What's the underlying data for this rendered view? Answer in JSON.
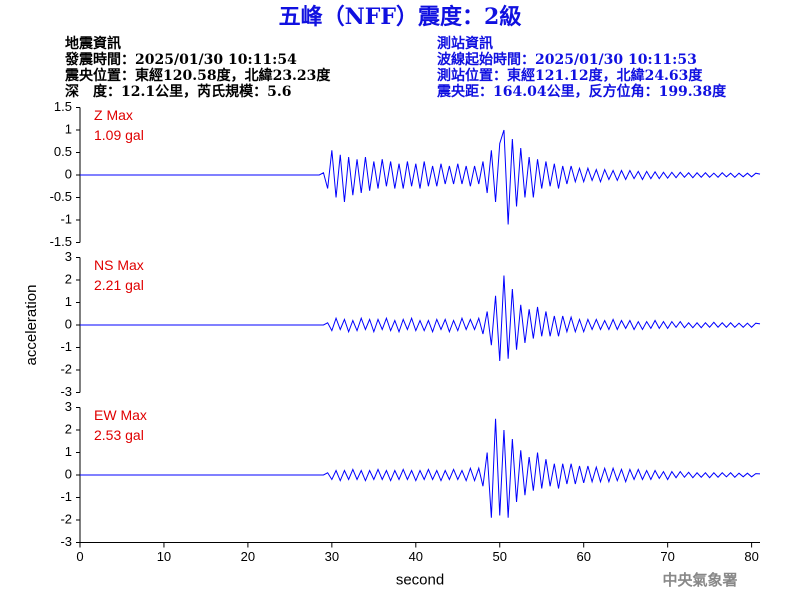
{
  "header": {
    "title": "五峰（NFF）震度：2級",
    "left": [
      "地震資訊",
      "發震時間：2025/01/30 10:11:54",
      "震央位置：東經120.58度，北緯23.23度",
      "深　度：12.1公里，芮氏規模：5.6"
    ],
    "right": [
      "測站資訊",
      "波線起始時間：2025/01/30 10:11:53",
      "測站位置：東經121.12度，北緯24.63度",
      "震央距：164.04公里，反方位角：199.38度"
    ]
  },
  "footer": "中央氣象署",
  "chart_data": [
    {
      "type": "line",
      "annotations": [
        "Z Max",
        "1.09 gal"
      ],
      "color": "#0000ff",
      "annotation_color": "#e00000",
      "xlim": [
        0,
        81
      ],
      "ylim": [
        -1.5,
        1.5
      ],
      "yticks": [
        -1.5,
        -1,
        -0.5,
        0,
        0.5,
        1,
        1.5
      ],
      "x": [
        0,
        28.5,
        29,
        29.5,
        30,
        30.5,
        31,
        31.5,
        32,
        32.5,
        33,
        33.5,
        34,
        34.5,
        35,
        35.5,
        36,
        36.5,
        37,
        37.5,
        38,
        38.5,
        39,
        39.5,
        40,
        40.5,
        41,
        41.5,
        42,
        42.5,
        43,
        43.5,
        44,
        44.5,
        45,
        45.5,
        46,
        46.5,
        47,
        47.5,
        48,
        48.5,
        49,
        49.5,
        50,
        50.5,
        51,
        51.5,
        52,
        52.5,
        53,
        53.5,
        54,
        54.5,
        55,
        55.5,
        56,
        56.5,
        57,
        57.5,
        58,
        58.5,
        59,
        59.5,
        60,
        60.5,
        61,
        61.5,
        62,
        62.5,
        63,
        63.5,
        64,
        64.5,
        65,
        65.5,
        66,
        66.5,
        67,
        67.5,
        68,
        68.5,
        69,
        69.5,
        70,
        70.5,
        71,
        71.5,
        72,
        72.5,
        73,
        73.5,
        74,
        74.5,
        75,
        75.5,
        76,
        76.5,
        77,
        77.5,
        78,
        78.5,
        79,
        79.5,
        80,
        80.5,
        81
      ],
      "values": [
        0,
        0,
        0.05,
        -0.3,
        0.55,
        -0.5,
        0.45,
        -0.6,
        0.4,
        -0.45,
        0.35,
        -0.4,
        0.4,
        -0.35,
        0.3,
        -0.3,
        0.35,
        -0.25,
        0.3,
        -0.3,
        0.25,
        -0.3,
        0.3,
        -0.25,
        0.25,
        -0.3,
        0.3,
        -0.25,
        0.2,
        -0.25,
        0.25,
        -0.2,
        0.2,
        -0.2,
        0.25,
        -0.2,
        0.2,
        -0.25,
        0.2,
        -0.2,
        0.3,
        -0.4,
        0.55,
        -0.6,
        0.7,
        1.0,
        -1.1,
        0.8,
        -0.7,
        0.6,
        -0.5,
        0.4,
        -0.5,
        0.35,
        -0.3,
        0.3,
        -0.25,
        0.25,
        -0.3,
        0.2,
        -0.2,
        0.2,
        -0.15,
        0.15,
        -0.15,
        0.15,
        -0.12,
        0.12,
        -0.15,
        0.12,
        -0.1,
        0.1,
        -0.12,
        0.1,
        -0.1,
        0.1,
        -0.08,
        0.08,
        -0.1,
        0.08,
        -0.08,
        0.07,
        -0.08,
        0.06,
        -0.07,
        0.06,
        -0.06,
        0.06,
        -0.05,
        0.05,
        -0.06,
        0.05,
        -0.05,
        0.05,
        -0.05,
        0.04,
        -0.05,
        0.05,
        -0.04,
        0.04,
        -0.05,
        0.04,
        -0.04,
        0.04,
        -0.04,
        0.04,
        0.02
      ]
    },
    {
      "type": "line",
      "annotations": [
        "NS Max",
        "2.21 gal"
      ],
      "color": "#0000ff",
      "annotation_color": "#e00000",
      "ylabel": "acceleration",
      "xlim": [
        0,
        81
      ],
      "ylim": [
        -3,
        3
      ],
      "yticks": [
        -3,
        -2,
        -1,
        0,
        1,
        2,
        3
      ],
      "x": [
        0,
        28.5,
        29,
        29.5,
        30,
        30.5,
        31,
        31.5,
        32,
        32.5,
        33,
        33.5,
        34,
        34.5,
        35,
        35.5,
        36,
        36.5,
        37,
        37.5,
        38,
        38.5,
        39,
        39.5,
        40,
        40.5,
        41,
        41.5,
        42,
        42.5,
        43,
        43.5,
        44,
        44.5,
        45,
        45.5,
        46,
        46.5,
        47,
        47.5,
        48,
        48.5,
        49,
        49.5,
        50,
        50.5,
        51,
        51.5,
        52,
        52.5,
        53,
        53.5,
        54,
        54.5,
        55,
        55.5,
        56,
        56.5,
        57,
        57.5,
        58,
        58.5,
        59,
        59.5,
        60,
        60.5,
        61,
        61.5,
        62,
        62.5,
        63,
        63.5,
        64,
        64.5,
        65,
        65.5,
        66,
        66.5,
        67,
        67.5,
        68,
        68.5,
        69,
        69.5,
        70,
        70.5,
        71,
        71.5,
        72,
        72.5,
        73,
        73.5,
        74,
        74.5,
        75,
        75.5,
        76,
        76.5,
        77,
        77.5,
        78,
        78.5,
        79,
        79.5,
        80,
        80.5,
        81
      ],
      "values": [
        0,
        0,
        0,
        0.1,
        -0.25,
        0.3,
        -0.2,
        0.25,
        -0.3,
        0.2,
        -0.25,
        0.3,
        -0.2,
        0.25,
        -0.3,
        0.25,
        -0.2,
        0.3,
        -0.25,
        0.2,
        -0.3,
        0.25,
        -0.2,
        0.3,
        -0.25,
        0.2,
        -0.25,
        0.2,
        -0.3,
        0.25,
        -0.2,
        0.25,
        -0.3,
        0.2,
        -0.25,
        0.3,
        -0.2,
        0.25,
        -0.2,
        0.3,
        -0.4,
        0.6,
        -0.9,
        1.3,
        -1.6,
        2.2,
        -1.5,
        1.6,
        -1.1,
        0.9,
        -0.8,
        0.7,
        -0.6,
        0.8,
        -0.5,
        0.6,
        -0.5,
        0.4,
        -0.5,
        0.4,
        -0.3,
        0.35,
        -0.3,
        0.25,
        -0.3,
        0.25,
        -0.2,
        0.25,
        -0.2,
        0.2,
        -0.2,
        0.25,
        -0.2,
        0.2,
        -0.15,
        0.2,
        -0.2,
        0.15,
        -0.2,
        0.15,
        -0.15,
        0.2,
        -0.15,
        0.15,
        -0.15,
        0.15,
        -0.1,
        0.15,
        -0.12,
        0.1,
        -0.12,
        0.1,
        -0.12,
        0.1,
        -0.1,
        0.12,
        -0.1,
        0.1,
        -0.1,
        0.1,
        -0.1,
        0.08,
        -0.1,
        0.08,
        -0.1,
        0.08,
        0.05
      ]
    },
    {
      "type": "line",
      "annotations": [
        "EW Max",
        "2.53 gal"
      ],
      "color": "#0000ff",
      "annotation_color": "#e00000",
      "xlabel": "second",
      "xlim": [
        0,
        81
      ],
      "xticks": [
        0,
        10,
        20,
        30,
        40,
        50,
        60,
        70,
        80
      ],
      "ylim": [
        -3,
        3
      ],
      "yticks": [
        -3,
        -2,
        -1,
        0,
        1,
        2,
        3
      ],
      "x": [
        0,
        28.5,
        29,
        29.5,
        30,
        30.5,
        31,
        31.5,
        32,
        32.5,
        33,
        33.5,
        34,
        34.5,
        35,
        35.5,
        36,
        36.5,
        37,
        37.5,
        38,
        38.5,
        39,
        39.5,
        40,
        40.5,
        41,
        41.5,
        42,
        42.5,
        43,
        43.5,
        44,
        44.5,
        45,
        45.5,
        46,
        46.5,
        47,
        47.5,
        48,
        48.5,
        49,
        49.5,
        50,
        50.5,
        51,
        51.5,
        52,
        52.5,
        53,
        53.5,
        54,
        54.5,
        55,
        55.5,
        56,
        56.5,
        57,
        57.5,
        58,
        58.5,
        59,
        59.5,
        60,
        60.5,
        61,
        61.5,
        62,
        62.5,
        63,
        63.5,
        64,
        64.5,
        65,
        65.5,
        66,
        66.5,
        67,
        67.5,
        68,
        68.5,
        69,
        69.5,
        70,
        70.5,
        71,
        71.5,
        72,
        72.5,
        73,
        73.5,
        74,
        74.5,
        75,
        75.5,
        76,
        76.5,
        77,
        77.5,
        78,
        78.5,
        79,
        79.5,
        80,
        80.5,
        81
      ],
      "values": [
        0,
        0,
        0,
        0.1,
        -0.2,
        0.2,
        -0.25,
        0.2,
        -0.2,
        0.25,
        -0.2,
        0.2,
        -0.25,
        0.2,
        -0.2,
        0.25,
        -0.2,
        0.2,
        -0.25,
        0.2,
        -0.2,
        0.25,
        -0.2,
        0.2,
        -0.25,
        0.2,
        -0.2,
        0.25,
        -0.2,
        0.2,
        -0.25,
        0.2,
        -0.2,
        0.25,
        -0.2,
        0.2,
        -0.25,
        0.3,
        -0.25,
        0.3,
        -0.5,
        1.0,
        -1.9,
        2.5,
        -1.8,
        2.0,
        -1.9,
        1.6,
        -1.2,
        1.1,
        -0.9,
        0.8,
        -0.7,
        1.0,
        -0.6,
        0.7,
        -0.5,
        0.5,
        -0.6,
        0.5,
        -0.4,
        0.5,
        -0.4,
        0.4,
        -0.35,
        0.4,
        -0.3,
        0.35,
        -0.3,
        0.3,
        -0.3,
        0.3,
        -0.25,
        0.25,
        -0.3,
        0.25,
        -0.2,
        0.25,
        -0.2,
        0.2,
        -0.2,
        0.2,
        -0.15,
        0.15,
        -0.2,
        0.15,
        -0.12,
        0.15,
        -0.1,
        0.12,
        -0.12,
        0.1,
        -0.1,
        0.1,
        -0.12,
        0.1,
        -0.1,
        0.1,
        -0.08,
        0.1,
        -0.1,
        0.08,
        -0.08,
        0.08,
        -0.08,
        0.06,
        0.05
      ]
    }
  ]
}
